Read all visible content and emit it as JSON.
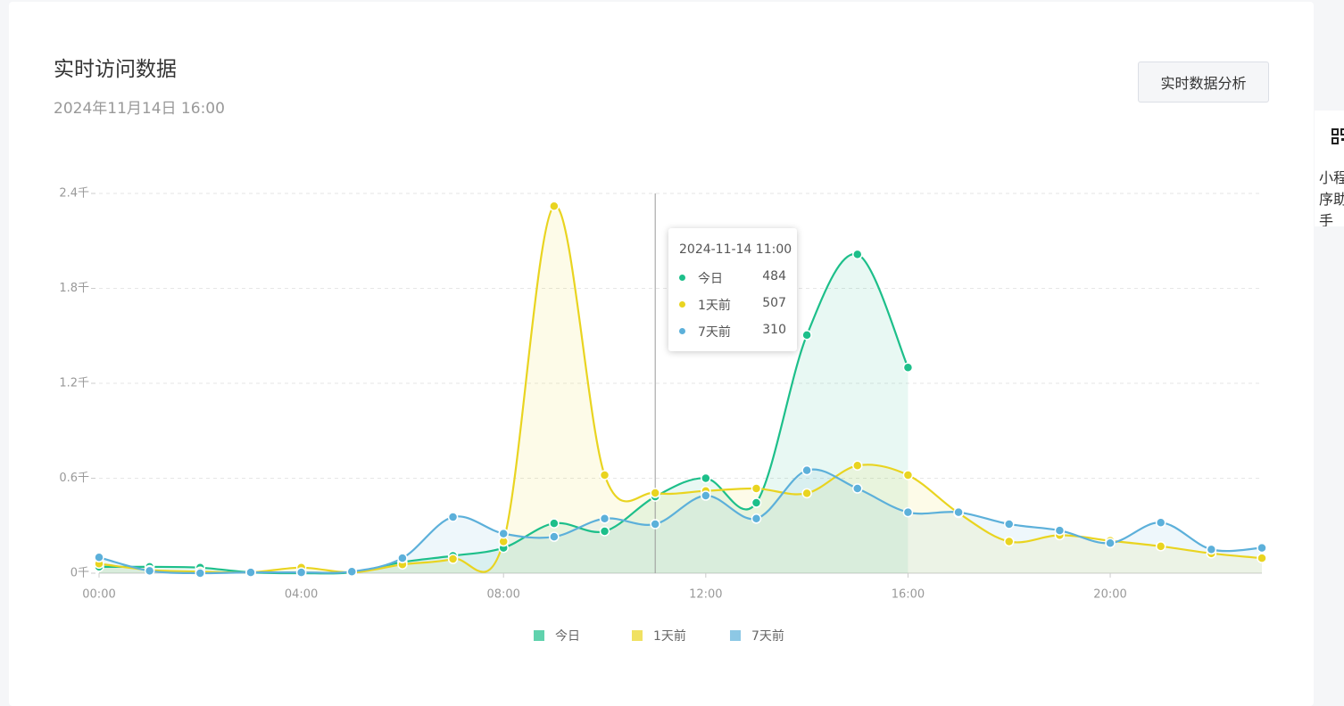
{
  "header": {
    "title": "实时访问数据",
    "subtitle": "2024年11月14日 16:00",
    "button": "实时数据分析"
  },
  "side_panel": {
    "label": "小程序助手"
  },
  "chart_data": {
    "type": "line",
    "smooth": true,
    "area": true,
    "categories": [
      "00:00",
      null,
      null,
      null,
      "04:00",
      null,
      null,
      null,
      "08:00",
      null,
      null,
      null,
      "12:00",
      null,
      null,
      null,
      "16:00",
      null,
      null,
      null,
      "20:00",
      null,
      null,
      null
    ],
    "ylim": [
      0,
      2400
    ],
    "yticks": [
      {
        "value": 0,
        "label": "0千"
      },
      {
        "value": 600,
        "label": "0.6千"
      },
      {
        "value": 1200,
        "label": "1.2千"
      },
      {
        "value": 1800,
        "label": "1.8千"
      },
      {
        "value": 2400,
        "label": "2.4千"
      }
    ],
    "grid": true,
    "legend": "bottom",
    "series": [
      {
        "name": "今日",
        "color": "#1dbf8a",
        "values": [
          40,
          40,
          35,
          5,
          0,
          5,
          70,
          110,
          160,
          315,
          265,
          484,
          600,
          445,
          1505,
          2015,
          1300,
          null,
          null,
          null,
          null,
          null,
          null,
          null
        ]
      },
      {
        "name": "1天前",
        "color": "#e9d420",
        "values": [
          60,
          20,
          10,
          5,
          35,
          5,
          55,
          90,
          200,
          2320,
          620,
          507,
          520,
          535,
          505,
          680,
          620,
          380,
          200,
          240,
          205,
          170,
          125,
          95
        ]
      },
      {
        "name": "7天前",
        "color": "#5cb0da",
        "values": [
          100,
          15,
          0,
          5,
          5,
          10,
          95,
          355,
          250,
          230,
          345,
          310,
          490,
          345,
          650,
          535,
          385,
          385,
          310,
          270,
          190,
          320,
          150,
          160
        ]
      }
    ],
    "tooltip": {
      "title": "2024-11-14 11:00",
      "index": 11
    }
  }
}
